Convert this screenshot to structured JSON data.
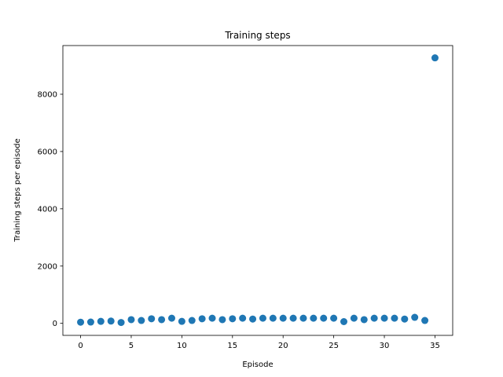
{
  "chart_data": {
    "type": "scatter",
    "title": "Training steps",
    "xlabel": "Episode",
    "ylabel": "Training steps per episode",
    "xlim": [
      -1.75,
      36.75
    ],
    "ylim": [
      -420,
      9700
    ],
    "xticks": [
      0,
      5,
      10,
      15,
      20,
      25,
      30,
      35
    ],
    "yticks": [
      0,
      2000,
      4000,
      6000,
      8000
    ],
    "grid": false,
    "legend": "none",
    "color": "#1f77b4",
    "series": [
      {
        "x": [
          0,
          1,
          2,
          3,
          4,
          5,
          6,
          7,
          8,
          9,
          10,
          11,
          12,
          13,
          14,
          15,
          16,
          17,
          18,
          19,
          20,
          21,
          22,
          23,
          24,
          25,
          26,
          27,
          28,
          29,
          30,
          31,
          32,
          33,
          34,
          35
        ],
        "y": [
          40,
          45,
          70,
          80,
          30,
          130,
          100,
          160,
          130,
          180,
          70,
          100,
          160,
          180,
          130,
          160,
          180,
          150,
          180,
          180,
          180,
          180,
          180,
          180,
          180,
          180,
          60,
          180,
          130,
          180,
          180,
          180,
          150,
          210,
          100,
          9270
        ]
      }
    ]
  }
}
